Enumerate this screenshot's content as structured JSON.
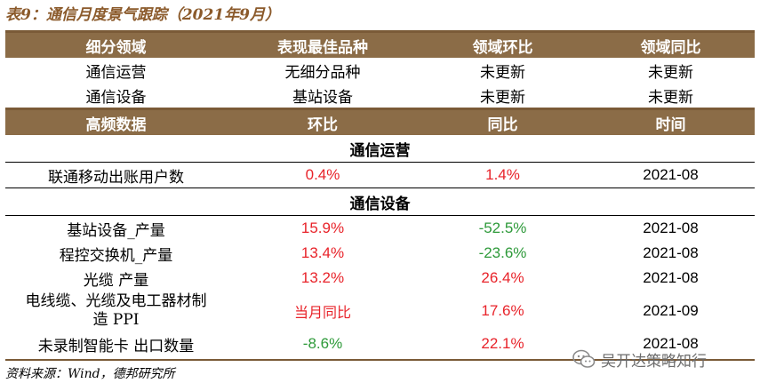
{
  "title": "表9：通信月度景气跟踪（2021年9月）",
  "table1": {
    "headers": [
      "细分领域",
      "表现最佳品种",
      "领域环比",
      "领域同比"
    ],
    "rows": [
      [
        "通信运营",
        "无细分品种",
        "未更新",
        "未更新"
      ],
      [
        "通信设备",
        "基站设备",
        "未更新",
        "未更新"
      ]
    ]
  },
  "table2": {
    "headers": [
      "高频数据",
      "环比",
      "同比",
      "时间"
    ],
    "sections": [
      {
        "name": "通信运营",
        "rows": [
          {
            "label": "联通移动出账用户数",
            "mom": "0.4%",
            "yoy": "1.4%",
            "time": "2021-08"
          }
        ]
      },
      {
        "name": "通信设备",
        "rows": [
          {
            "label": "基站设备_产量",
            "mom": "15.9%",
            "yoy": "-52.5%",
            "time": "2021-08"
          },
          {
            "label": "程控交换机_产量",
            "mom": "13.4%",
            "yoy": "-23.6%",
            "time": "2021-08"
          },
          {
            "label": "光缆 产量",
            "mom": "13.2%",
            "yoy": "26.4%",
            "time": "2021-08"
          },
          {
            "label_line1": "电线缆、光缆及电工器材制",
            "label_line2": "造 PPI",
            "mom": "当月同比",
            "yoy": "17.6%",
            "time": "2021-09"
          },
          {
            "label": "未录制智能卡 出口数量",
            "mom": "-8.6%",
            "yoy": "22.1%",
            "time": "2021-08"
          }
        ]
      }
    ]
  },
  "source": "资料来源：Wind，德邦研究所",
  "watermark": "吴开达策略知行",
  "colors": {
    "header_bg": "#8b6c47",
    "positive": "#e8232a",
    "negative": "#2e9a3a",
    "title": "#8b5a2b"
  }
}
